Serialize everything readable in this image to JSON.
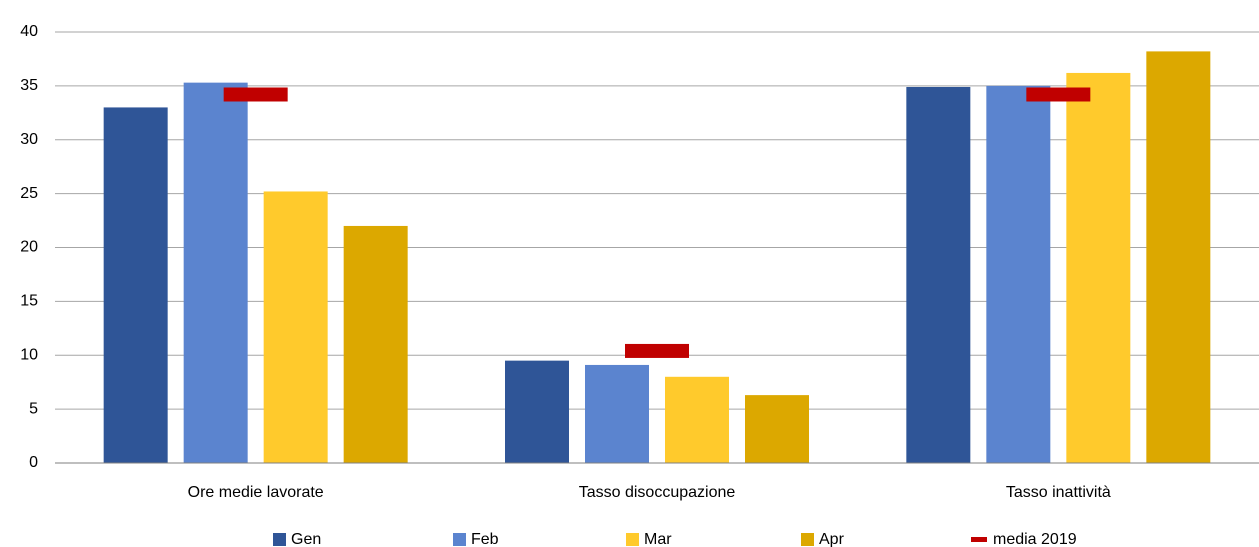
{
  "chart_data": {
    "type": "bar",
    "categories": [
      "Ore medie lavorate",
      "Tasso disoccupazione",
      "Tasso inattività"
    ],
    "series": [
      {
        "name": "Gen",
        "color": "#2f5597",
        "values": [
          33.0,
          9.5,
          34.9
        ]
      },
      {
        "name": "Feb",
        "color": "#5b84cf",
        "values": [
          35.3,
          9.1,
          35.0
        ]
      },
      {
        "name": "Mar",
        "color": "#ffca2c",
        "values": [
          25.2,
          8.0,
          36.2
        ]
      },
      {
        "name": "Apr",
        "color": "#dca800",
        "values": [
          22.0,
          6.3,
          38.2
        ]
      }
    ],
    "markers": {
      "name": "media 2019",
      "color": "#c00000",
      "values": [
        34.2,
        10.4,
        34.2
      ]
    },
    "ylim": [
      0,
      40
    ],
    "yticks": [
      0,
      5,
      10,
      15,
      20,
      25,
      30,
      35,
      40
    ],
    "grid": true,
    "legend": "bottom"
  }
}
